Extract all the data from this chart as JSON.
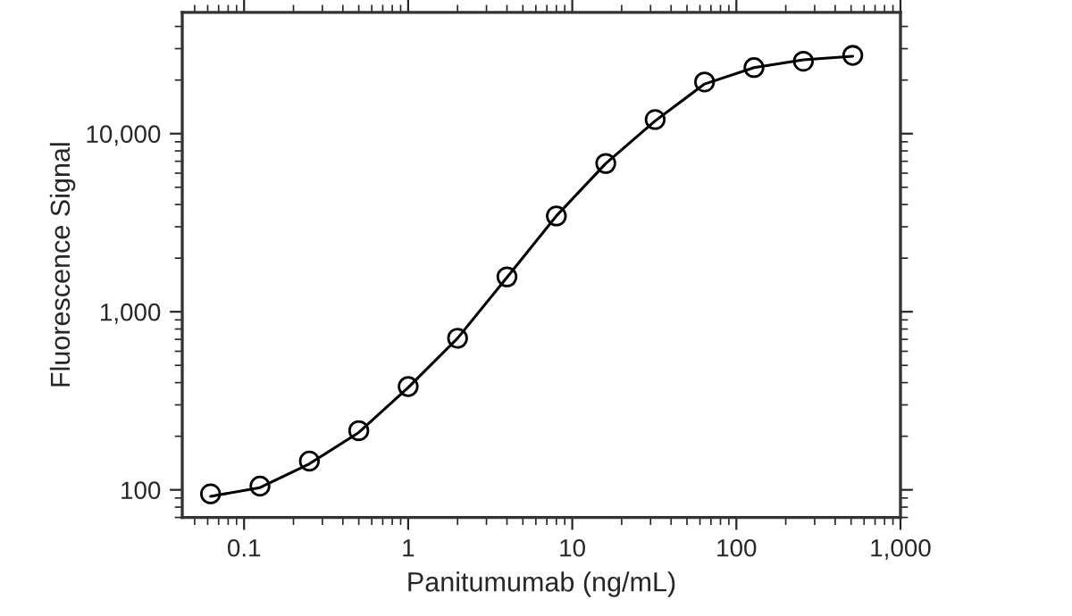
{
  "chart_data": {
    "type": "line",
    "xlabel": "Panitumumab (ng/mL)",
    "ylabel": "Fluorescence Signal",
    "log": "xy",
    "legend": false,
    "grid": false,
    "xlim": [
      0.042,
      1000
    ],
    "ylim": [
      70,
      48000
    ],
    "xticks": [
      0.1,
      1,
      10,
      100,
      {
        "value": 1000,
        "label": "1,000"
      }
    ],
    "yticks": [
      100,
      {
        "value": 1000,
        "label": "1,000"
      },
      {
        "value": 10000,
        "label": "10,000"
      }
    ],
    "series": [
      {
        "type": "scatter",
        "marker": "circle",
        "color": "#000000",
        "x": [
          0.0625,
          0.125,
          0.25,
          0.5,
          1,
          2,
          4,
          8,
          16,
          32,
          64,
          128,
          256,
          512
        ],
        "values": [
          95,
          105,
          145,
          215,
          380,
          710,
          1570,
          3450,
          6800,
          12000,
          19500,
          23500,
          25500,
          27500
        ]
      },
      {
        "color": "#000000",
        "x": [
          0.0625,
          0.125,
          0.25,
          0.5,
          1,
          2,
          4,
          8,
          16,
          32,
          64,
          128,
          256,
          512
        ],
        "values": [
          92,
          103,
          140,
          210,
          375,
          710,
          1560,
          3450,
          6800,
          11800,
          19000,
          23500,
          26000,
          27200
        ]
      }
    ]
  }
}
